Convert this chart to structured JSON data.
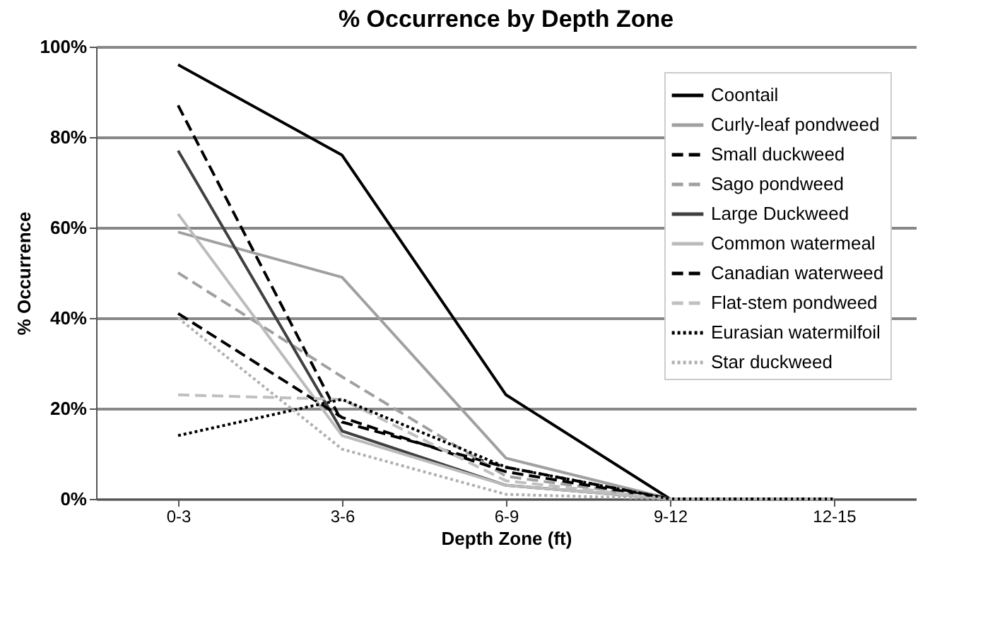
{
  "chart_data": {
    "type": "line",
    "title": "% Occurrence by Depth Zone",
    "xlabel": "Depth Zone (ft)",
    "ylabel": "% Occurrence",
    "categories": [
      "0-3",
      "3-6",
      "6-9",
      "9-12",
      "12-15"
    ],
    "series": [
      {
        "name": "Coontail",
        "color": "#000000",
        "line_style": "solid",
        "values": [
          96,
          76,
          23,
          0,
          0
        ]
      },
      {
        "name": "Curly-leaf pondweed",
        "color": "#a0a0a0",
        "line_style": "solid",
        "values": [
          59,
          49,
          9,
          0,
          0
        ]
      },
      {
        "name": "Small duckweed",
        "color": "#000000",
        "line_style": "dashed",
        "values": [
          87,
          17,
          7,
          0,
          0
        ]
      },
      {
        "name": "Sago pondweed",
        "color": "#a0a0a0",
        "line_style": "dashed",
        "values": [
          50,
          27,
          5,
          0,
          0
        ]
      },
      {
        "name": "Large Duckweed",
        "color": "#404040",
        "line_style": "solid",
        "values": [
          77,
          15,
          3,
          0,
          0
        ]
      },
      {
        "name": "Common watermeal",
        "color": "#bbbbbb",
        "line_style": "solid",
        "values": [
          63,
          14,
          3,
          0,
          0
        ]
      },
      {
        "name": "Canadian waterweed",
        "color": "#000000",
        "line_style": "dashed",
        "values": [
          41,
          18,
          6,
          0,
          0
        ]
      },
      {
        "name": "Flat-stem pondweed",
        "color": "#c0c0c0",
        "line_style": "dashed",
        "values": [
          23,
          22,
          4,
          0,
          0
        ]
      },
      {
        "name": "Eurasian watermilfoil",
        "color": "#000000",
        "line_style": "dotted",
        "values": [
          14,
          22,
          7,
          0,
          0
        ]
      },
      {
        "name": "Star duckweed",
        "color": "#b0b0b0",
        "line_style": "dotted",
        "values": [
          40,
          11,
          1,
          0,
          0
        ]
      }
    ],
    "ylim": [
      0,
      100
    ],
    "yticks": [
      {
        "value": 0,
        "label": "0%"
      },
      {
        "value": 20,
        "label": "20%"
      },
      {
        "value": 40,
        "label": "40%"
      },
      {
        "value": 60,
        "label": "60%"
      },
      {
        "value": 80,
        "label": "80%"
      },
      {
        "value": 100,
        "label": "100%"
      }
    ],
    "grid": "y",
    "legend": "top right"
  }
}
